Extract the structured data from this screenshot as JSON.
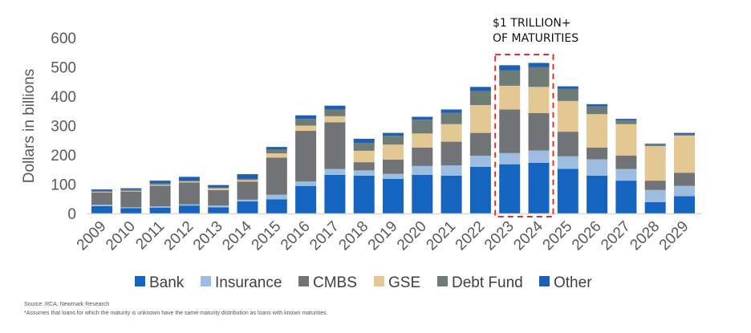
{
  "chart_data": {
    "type": "bar",
    "stacked": true,
    "title": "",
    "xlabel": "",
    "ylabel": "Dollars in billions",
    "ylim": [
      0,
      600
    ],
    "yticks": [
      0,
      100,
      200,
      300,
      400,
      500,
      600
    ],
    "grid": false,
    "legend_position": "bottom",
    "categories": [
      "2009",
      "2010",
      "2011",
      "2012",
      "2013",
      "2014",
      "2015",
      "2016",
      "2017",
      "2018",
      "2019",
      "2020",
      "2021",
      "2022",
      "2023",
      "2024",
      "2025",
      "2026",
      "2027",
      "2028",
      "2029"
    ],
    "series": [
      {
        "name": "Bank",
        "color": "#1565c0",
        "values": [
          25,
          18,
          20,
          27,
          21,
          41,
          48,
          94,
          132,
          129,
          118,
          132,
          129,
          159,
          168,
          173,
          152,
          129,
          112,
          39,
          59
        ]
      },
      {
        "name": "Insurance",
        "color": "#9dbde0",
        "values": [
          5,
          3,
          4,
          4,
          6,
          6,
          16,
          15,
          20,
          18,
          17,
          30,
          35,
          38,
          38,
          42,
          43,
          56,
          40,
          41,
          35
        ]
      },
      {
        "name": "CMBS",
        "color": "#717377",
        "values": [
          42,
          54,
          71,
          75,
          53,
          62,
          127,
          173,
          159,
          28,
          49,
          63,
          81,
          78,
          149,
          128,
          84,
          40,
          46,
          32,
          45
        ]
      },
      {
        "name": "GSE",
        "color": "#e3c893",
        "values": [
          2,
          2,
          3,
          3,
          6,
          5,
          14,
          18,
          21,
          39,
          51,
          48,
          60,
          95,
          81,
          89,
          105,
          114,
          107,
          118,
          127
        ]
      },
      {
        "name": "Debt Fund",
        "color": "#6f7b75",
        "values": [
          3,
          5,
          4,
          3,
          3,
          4,
          13,
          23,
          23,
          27,
          30,
          47,
          38,
          48,
          52,
          68,
          41,
          26,
          13,
          5,
          4
        ]
      },
      {
        "name": "Other",
        "color": "#1d5fb5",
        "values": [
          5,
          4,
          10,
          13,
          8,
          16,
          9,
          12,
          13,
          14,
          10,
          10,
          12,
          14,
          18,
          14,
          9,
          8,
          5,
          3,
          5
        ]
      }
    ],
    "annotations": [
      {
        "text_line1": "$1 TRILLION+",
        "text_line2": "OF MATURITIES",
        "highlight_categories": [
          "2023",
          "2024"
        ],
        "highlight_color": "#d9342b"
      }
    ]
  },
  "footnotes": {
    "source": "Source: RCA, Newmark Research",
    "note": "*Assumes that loans for which the maturity is unknown have the same maturity distribution as loans with known maturities."
  }
}
